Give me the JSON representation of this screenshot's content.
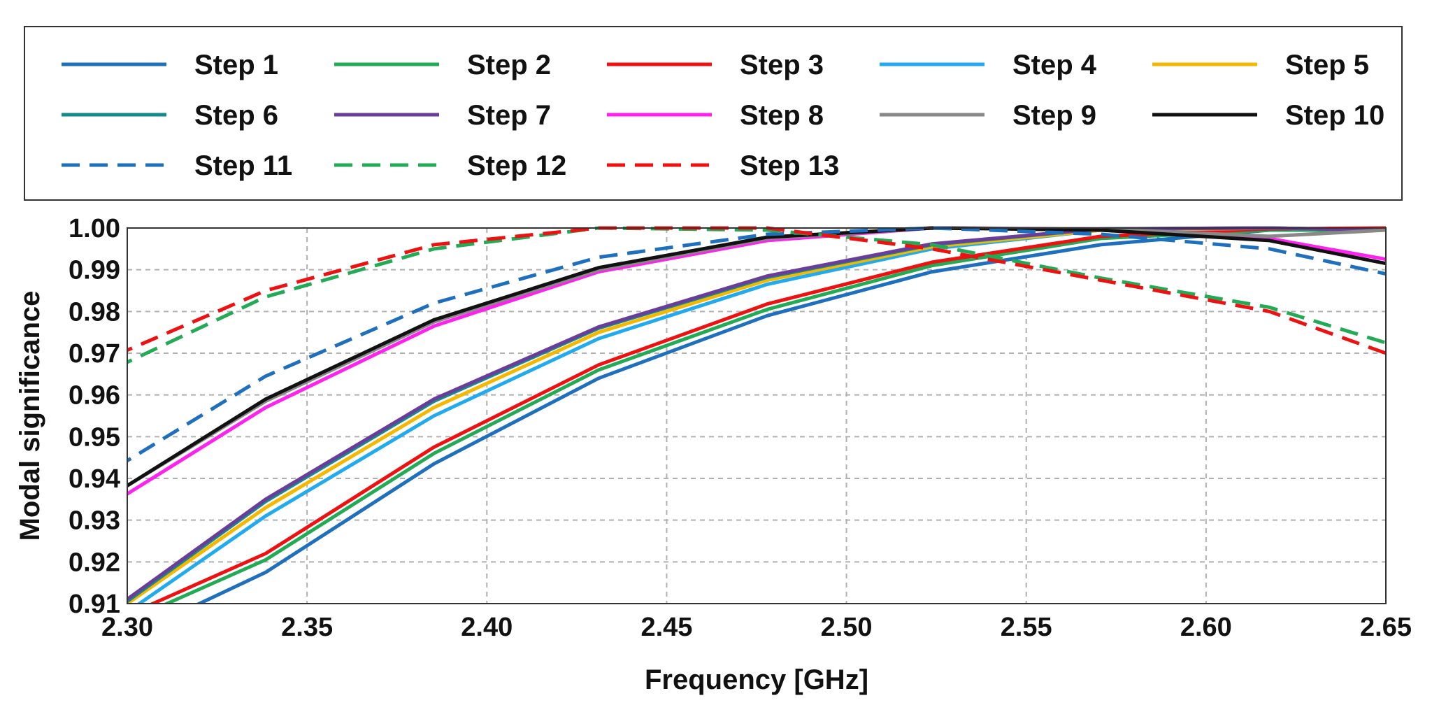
{
  "chart_data": {
    "type": "line",
    "title": "",
    "xlabel": "Frequency [GHz]",
    "ylabel": "Modal significance",
    "xlim": [
      2.3,
      2.65
    ],
    "ylim": [
      0.91,
      1.0
    ],
    "grid": true,
    "legend_position": "top",
    "x_ticks": [
      "2.30",
      "2.35",
      "2.40",
      "2.45",
      "2.50",
      "2.55",
      "2.60",
      "2.65"
    ],
    "y_ticks": [
      "0.91",
      "0.92",
      "0.93",
      "0.94",
      "0.95",
      "0.96",
      "0.97",
      "0.98",
      "0.99",
      "1.00"
    ],
    "x": [
      2.2967,
      2.3385,
      2.3853,
      2.4311,
      2.478,
      2.5238,
      2.5707,
      2.6176,
      2.65
    ],
    "series": [
      {
        "name": "Step 1",
        "color": "#1f6fbf",
        "dash": "solid",
        "values": [
          0.9005,
          0.9175,
          0.9435,
          0.964,
          0.979,
          0.9895,
          0.996,
          0.9995,
          1.0
        ]
      },
      {
        "name": "Step 2",
        "color": "#22aa55",
        "dash": "solid",
        "values": [
          0.9045,
          0.9205,
          0.946,
          0.966,
          0.9805,
          0.991,
          0.9975,
          0.9995,
          0.9995
        ]
      },
      {
        "name": "Step 3",
        "color": "#ee1111",
        "dash": "solid",
        "values": [
          0.906,
          0.922,
          0.9475,
          0.9672,
          0.9818,
          0.9918,
          0.998,
          0.9998,
          1.0
        ]
      },
      {
        "name": "Step 4",
        "color": "#22aaee",
        "dash": "solid",
        "values": [
          0.906,
          0.931,
          0.955,
          0.9735,
          0.9865,
          0.995,
          0.9995,
          1.0,
          0.9995
        ]
      },
      {
        "name": "Step 5",
        "color": "#f5b800",
        "dash": "solid",
        "values": [
          0.908,
          0.933,
          0.957,
          0.975,
          0.9875,
          0.9955,
          0.9995,
          1.0,
          0.9995
        ]
      },
      {
        "name": "Step 6",
        "color": "#138a8a",
        "dash": "solid",
        "values": [
          0.9085,
          0.9345,
          0.9585,
          0.976,
          0.9882,
          0.996,
          0.9998,
          1.0,
          0.9995
        ]
      },
      {
        "name": "Step 7",
        "color": "#6a3d9a",
        "dash": "solid",
        "values": [
          0.909,
          0.935,
          0.959,
          0.9763,
          0.9885,
          0.9962,
          0.9998,
          1.0,
          0.9995
        ]
      },
      {
        "name": "Step 8",
        "color": "#ff22ee",
        "dash": "solid",
        "values": [
          0.9345,
          0.957,
          0.9765,
          0.9895,
          0.997,
          1.0,
          0.9998,
          0.9975,
          0.9925
        ]
      },
      {
        "name": "Step 9",
        "color": "#888888",
        "dash": "solid",
        "values": [
          0.9365,
          0.9585,
          0.9775,
          0.99,
          0.9975,
          1.0,
          0.9998,
          0.998,
          0.9995
        ]
      },
      {
        "name": "Step 10",
        "color": "#111111",
        "dash": "solid",
        "values": [
          0.9365,
          0.959,
          0.978,
          0.9905,
          0.9978,
          1.0,
          0.9995,
          0.997,
          0.9915
        ]
      },
      {
        "name": "Step 11",
        "color": "#1f6fbf",
        "dash": "dashed",
        "values": [
          0.9425,
          0.9645,
          0.982,
          0.993,
          0.9985,
          1.0,
          0.9985,
          0.995,
          0.989
        ]
      },
      {
        "name": "Step 12",
        "color": "#22aa55",
        "dash": "dashed",
        "values": [
          0.9665,
          0.9835,
          0.995,
          1.0,
          0.9995,
          0.996,
          0.988,
          0.981,
          0.9725
        ]
      },
      {
        "name": "Step 13",
        "color": "#ee1111",
        "dash": "dashed",
        "values": [
          0.9695,
          0.985,
          0.996,
          1.0,
          1.0,
          0.995,
          0.9875,
          0.98,
          0.97
        ]
      }
    ]
  }
}
